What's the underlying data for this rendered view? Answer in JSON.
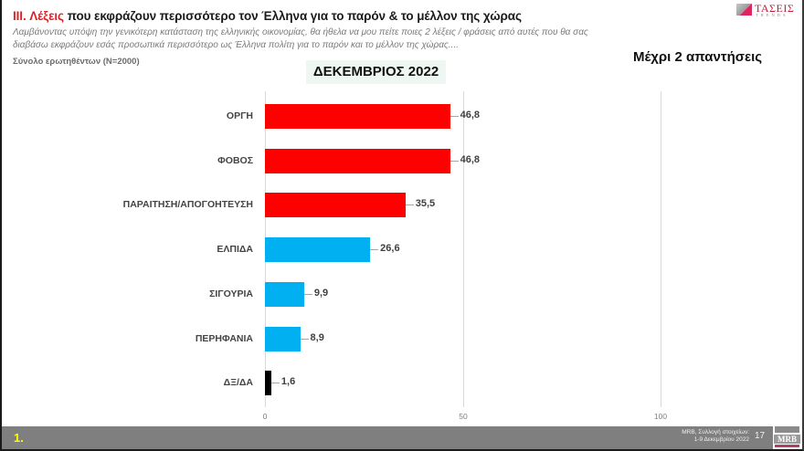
{
  "header": {
    "title_prefix": "III.",
    "title_highlight": "Λέξεις",
    "title_rest": "που εκφράζουν περισσότερο τον Έλληνα για το παρόν & το μέλλον της χώρας",
    "question": "Λαμβάνοντας υπόψη την γενικότερη κατάσταση της ελληνικής οικονομίας, θα ήθελα να μου πείτε ποιες 2  λέξεις / φράσεις από αυτές που θα σας διαβάσω εκφράζουν εσάς προσωπικά περισσότερο ως Έλληνα πολίτη για το παρόν και το μέλλον της χώρας....",
    "base": "Σύνολο ερωτηθέντων (N=2000)",
    "period": "ΔΕΚΕΜΒΡΙΟΣ 2022",
    "answers_note": "Μέχρι 2 απαντήσεις"
  },
  "logo": {
    "brand": "ΤΑΣΕΙΣ",
    "sub": "TRENDS"
  },
  "colors": {
    "negative": "#ff0000",
    "positive": "#00b0f0",
    "dk": "#000000",
    "title_accent": "#e31e24",
    "footer_bg": "#7f7f7f",
    "footer_number": "#ffff00"
  },
  "chart_data": {
    "type": "bar",
    "orientation": "horizontal",
    "title": "ΔΕΚΕΜΒΡΙΟΣ 2022",
    "categories": [
      "ΟΡΓΗ",
      "ΦΟΒΟΣ",
      "ΠΑΡΑΙΤΗΣΗ/ΑΠΟΓΟΗΤΕΥΣΗ",
      "ΕΛΠΙΔΑ",
      "ΣΙΓΟΥΡΙΑ",
      "ΠΕΡΗΦΑΝΙΑ",
      "ΔΞ/ΔΑ"
    ],
    "values": [
      46.8,
      46.8,
      35.5,
      26.6,
      9.9,
      8.9,
      1.6
    ],
    "value_labels": [
      "46,8",
      "46,8",
      "35,5",
      "26,6",
      "9,9",
      "8,9",
      "1,6"
    ],
    "bar_colors": [
      "#ff0000",
      "#ff0000",
      "#ff0000",
      "#00b0f0",
      "#00b0f0",
      "#00b0f0",
      "#000000"
    ],
    "xlabel": "",
    "ylabel": "",
    "xlim": [
      0,
      100
    ],
    "x_ticks": [
      "0",
      "50",
      "100"
    ],
    "grid": true,
    "legend": null
  },
  "footer": {
    "section_number": "1.",
    "source_line1": "MRB, Συλλογή στοιχείων:",
    "source_line2": "1-9 Δεκεμβρίου 2022",
    "slide_number": "17",
    "mrb_logo": "MRB"
  }
}
